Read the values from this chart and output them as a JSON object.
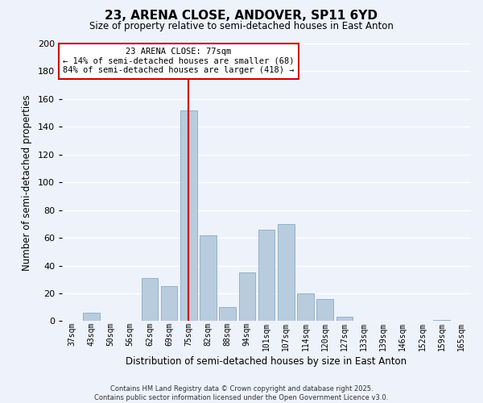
{
  "title": "23, ARENA CLOSE, ANDOVER, SP11 6YD",
  "subtitle": "Size of property relative to semi-detached houses in East Anton",
  "xlabel": "Distribution of semi-detached houses by size in East Anton",
  "ylabel": "Number of semi-detached properties",
  "categories": [
    "37sqm",
    "43sqm",
    "50sqm",
    "56sqm",
    "62sqm",
    "69sqm",
    "75sqm",
    "82sqm",
    "88sqm",
    "94sqm",
    "101sqm",
    "107sqm",
    "114sqm",
    "120sqm",
    "127sqm",
    "133sqm",
    "139sqm",
    "146sqm",
    "152sqm",
    "159sqm",
    "165sqm"
  ],
  "values": [
    0,
    6,
    0,
    0,
    31,
    25,
    152,
    62,
    10,
    35,
    66,
    70,
    20,
    16,
    3,
    0,
    0,
    0,
    0,
    1,
    0
  ],
  "bar_color": "#b8ccde",
  "bar_edge_color": "#8aaac4",
  "vline_x_index": 6,
  "vline_color": "#cc0000",
  "ylim": [
    0,
    200
  ],
  "yticks": [
    0,
    20,
    40,
    60,
    80,
    100,
    120,
    140,
    160,
    180,
    200
  ],
  "background_color": "#eef2fb",
  "grid_color": "#ffffff",
  "ann_line1": "23 ARENA CLOSE: 77sqm",
  "ann_line2": "← 14% of semi-detached houses are smaller (68)",
  "ann_line3": "84% of semi-detached houses are larger (418) →",
  "vline_color_box": "#cc0000",
  "footer_line1": "Contains HM Land Registry data © Crown copyright and database right 2025.",
  "footer_line2": "Contains public sector information licensed under the Open Government Licence v3.0."
}
